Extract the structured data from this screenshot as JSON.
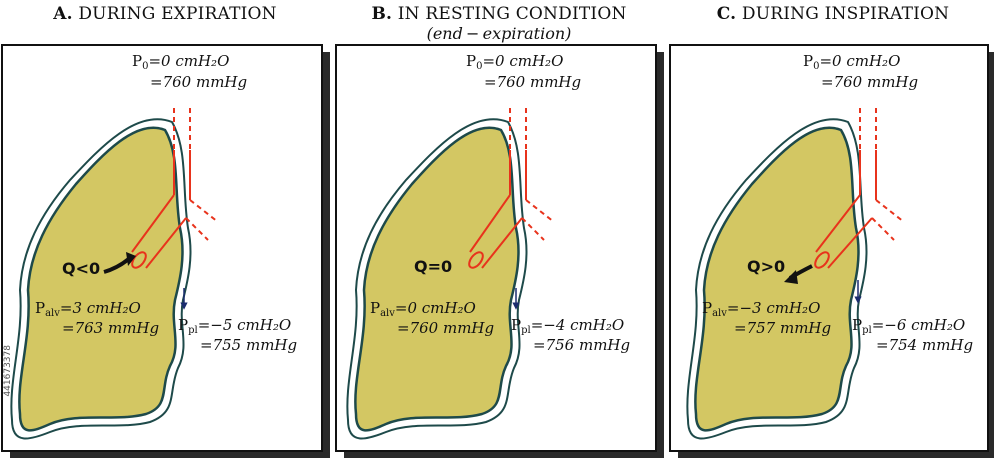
{
  "panels": [
    {
      "letter": "A.",
      "title": "DURING EXPIRATION",
      "subtitle": "",
      "p0_cm": "=0 cmH₂O",
      "p0_mm": "=760 mmHg",
      "flow": "Q<0",
      "palv_cm": "=3 cmH₂O",
      "palv_mm": "=763 mmHg",
      "ppl_cm": "=−5 cmH₂O",
      "ppl_mm": "=755 mmHg"
    },
    {
      "letter": "B.",
      "title": "IN RESTING CONDITION",
      "subtitle": "(end − expiration)",
      "p0_cm": "=0 cmH₂O",
      "p0_mm": "=760 mmHg",
      "flow": "Q=0",
      "palv_cm": "=0 cmH₂O",
      "palv_mm": "=760 mmHg",
      "ppl_cm": "=−4 cmH₂O",
      "ppl_mm": "=756 mmHg"
    },
    {
      "letter": "C.",
      "title": "DURING INSPIRATION",
      "subtitle": "",
      "p0_cm": "=0 cmH₂O",
      "p0_mm": "=760 mmHg",
      "flow": "Q>0",
      "palv_cm": "=−3 cmH₂O",
      "palv_mm": "=757 mmHg",
      "ppl_cm": "=−6 cmH₂O",
      "ppl_mm": "=754 mmHg"
    }
  ],
  "symbols": {
    "p0": "P",
    "p0_sub": "0",
    "palv": "P",
    "palv_sub": "alv",
    "ppl": "P",
    "ppl_sub": "pl"
  },
  "watermark": "441673378",
  "colors": {
    "lung_fill": "#d3c763",
    "lung_stroke": "#1e4a4a",
    "airway": "#e8331c",
    "pleural_arrow": "#1a2c6e",
    "panel_shadow": "#2a2a2a"
  }
}
